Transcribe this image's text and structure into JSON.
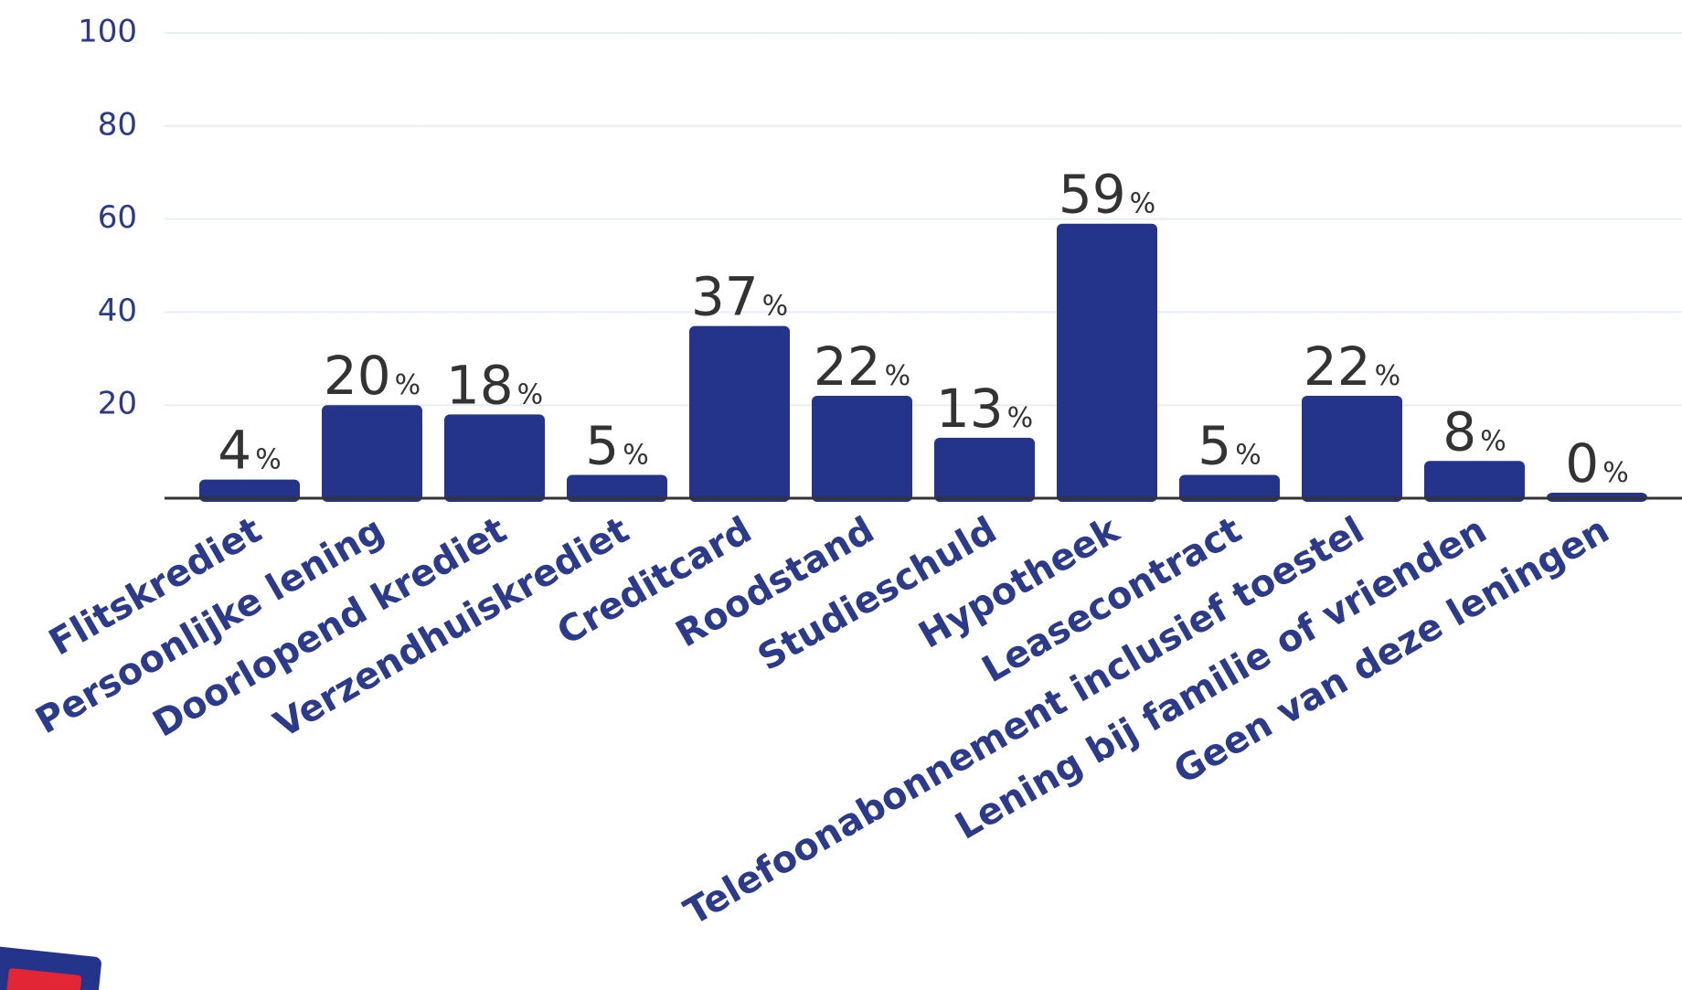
{
  "chart_data": {
    "type": "bar",
    "categories": [
      "Flitskrediet",
      "Persoonlijke lening",
      "Doorlopend krediet",
      "Verzendhuiskrediet",
      "Creditcard",
      "Roodstand",
      "Studieschuld",
      "Hypotheek",
      "Leasecontract",
      "Telefoonabonnement inclusief toestel",
      "Lening bij familie of vrienden",
      "Geen van deze leningen"
    ],
    "values": [
      4,
      20,
      18,
      5,
      37,
      22,
      13,
      59,
      5,
      22,
      8,
      0
    ],
    "value_labels": [
      "4%",
      "20%",
      "18%",
      "5%",
      "37%",
      "22%",
      "13%",
      "59%",
      "5%",
      "22%",
      "8%",
      "0%"
    ],
    "color": "#24348a",
    "ylim": [
      0,
      100
    ],
    "yticks": [
      20,
      40,
      60,
      80,
      100
    ],
    "grid": true
  }
}
